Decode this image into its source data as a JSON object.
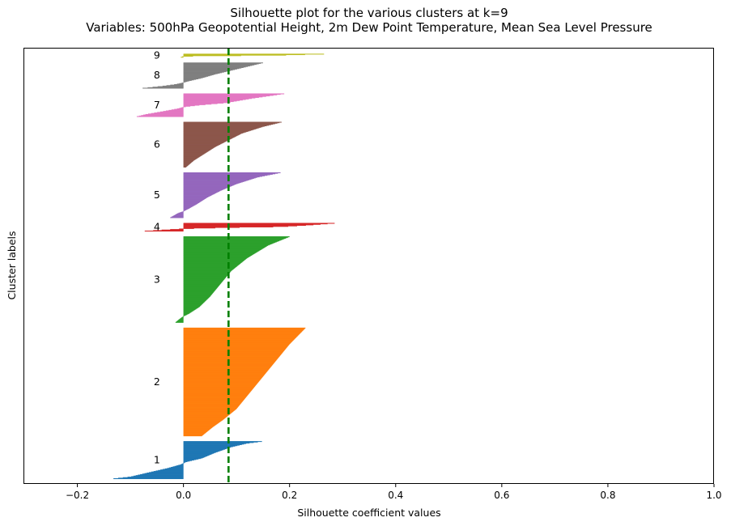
{
  "chart_data": {
    "type": "bar",
    "title": "Silhouette plot for the various clusters at k=9",
    "subtitle": "Variables: 500hPa Geopotential Height, 2m Dew Point Temperature, Mean Sea Level Pressure",
    "xlabel": "Silhouette coefficient values",
    "ylabel": "Cluster labels",
    "xlim": [
      -0.3,
      1.0
    ],
    "xticks": [
      "−0.2",
      "0.0",
      "0.2",
      "0.4",
      "0.6",
      "0.8",
      "1.0"
    ],
    "xtick_values": [
      -0.2,
      0.0,
      0.2,
      0.4,
      0.6,
      0.8,
      1.0
    ],
    "grid": false,
    "average_silhouette": 0.085,
    "average_line_color": "#008000",
    "clusters": [
      {
        "label": "1",
        "color": "#1f77b4",
        "size": 73,
        "profile": [
          [
            0,
            0.148
          ],
          [
            0.05,
            0.12
          ],
          [
            0.15,
            0.09
          ],
          [
            0.3,
            0.06
          ],
          [
            0.45,
            0.035
          ],
          [
            0.55,
            0.005
          ],
          [
            0.62,
            -0.005
          ],
          [
            0.72,
            -0.03
          ],
          [
            0.85,
            -0.07
          ],
          [
            0.95,
            -0.1
          ],
          [
            1,
            -0.132
          ]
        ]
      },
      {
        "label": "2",
        "color": "#ff7f0e",
        "size": 210,
        "profile": [
          [
            0,
            0.23
          ],
          [
            0.15,
            0.2
          ],
          [
            0.3,
            0.175
          ],
          [
            0.45,
            0.15
          ],
          [
            0.6,
            0.125
          ],
          [
            0.75,
            0.1
          ],
          [
            0.85,
            0.075
          ],
          [
            0.92,
            0.055
          ],
          [
            1,
            0.035
          ]
        ]
      },
      {
        "label": "3",
        "color": "#2ca02c",
        "size": 167,
        "profile": [
          [
            0,
            0.2
          ],
          [
            0.1,
            0.16
          ],
          [
            0.25,
            0.12
          ],
          [
            0.4,
            0.09
          ],
          [
            0.55,
            0.07
          ],
          [
            0.7,
            0.05
          ],
          [
            0.82,
            0.03
          ],
          [
            0.9,
            0.01
          ],
          [
            0.93,
            0.0
          ],
          [
            0.95,
            -0.005
          ],
          [
            1,
            -0.015
          ]
        ]
      },
      {
        "label": "4",
        "color": "#d62728",
        "size": 16,
        "profile": [
          [
            0,
            0.285
          ],
          [
            0.25,
            0.235
          ],
          [
            0.45,
            0.185
          ],
          [
            0.55,
            0.09
          ],
          [
            0.7,
            0.0
          ],
          [
            0.82,
            -0.03
          ],
          [
            1,
            -0.073
          ]
        ]
      },
      {
        "label": "5",
        "color": "#9467bd",
        "size": 88,
        "profile": [
          [
            0,
            0.183
          ],
          [
            0.1,
            0.14
          ],
          [
            0.25,
            0.1
          ],
          [
            0.4,
            0.07
          ],
          [
            0.55,
            0.045
          ],
          [
            0.7,
            0.025
          ],
          [
            0.8,
            0.01
          ],
          [
            0.86,
            0.0
          ],
          [
            0.9,
            -0.01
          ],
          [
            1,
            -0.025
          ]
        ]
      },
      {
        "label": "6",
        "color": "#8c564b",
        "size": 88,
        "profile": [
          [
            0,
            0.185
          ],
          [
            0.1,
            0.15
          ],
          [
            0.25,
            0.11
          ],
          [
            0.4,
            0.085
          ],
          [
            0.55,
            0.06
          ],
          [
            0.7,
            0.04
          ],
          [
            0.85,
            0.02
          ],
          [
            1,
            0.005
          ]
        ]
      },
      {
        "label": "7",
        "color": "#e377c2",
        "size": 45,
        "profile": [
          [
            0,
            0.19
          ],
          [
            0.2,
            0.13
          ],
          [
            0.4,
            0.08
          ],
          [
            0.5,
            0.03
          ],
          [
            0.58,
            0.0
          ],
          [
            0.65,
            -0.01
          ],
          [
            0.78,
            -0.04
          ],
          [
            0.9,
            -0.07
          ],
          [
            1,
            -0.088
          ]
        ]
      },
      {
        "label": "8",
        "color": "#7f7f7f",
        "size": 50,
        "profile": [
          [
            0,
            0.15
          ],
          [
            0.15,
            0.12
          ],
          [
            0.3,
            0.09
          ],
          [
            0.45,
            0.06
          ],
          [
            0.6,
            0.035
          ],
          [
            0.72,
            0.01
          ],
          [
            0.78,
            0.0
          ],
          [
            0.85,
            -0.015
          ],
          [
            0.92,
            -0.04
          ],
          [
            1,
            -0.077
          ]
        ]
      },
      {
        "label": "9",
        "color": "#bcbd22",
        "size": 7,
        "profile": [
          [
            0,
            0.265
          ],
          [
            0.35,
            0.19
          ],
          [
            0.7,
            0.0
          ],
          [
            1,
            -0.005
          ]
        ]
      }
    ]
  }
}
